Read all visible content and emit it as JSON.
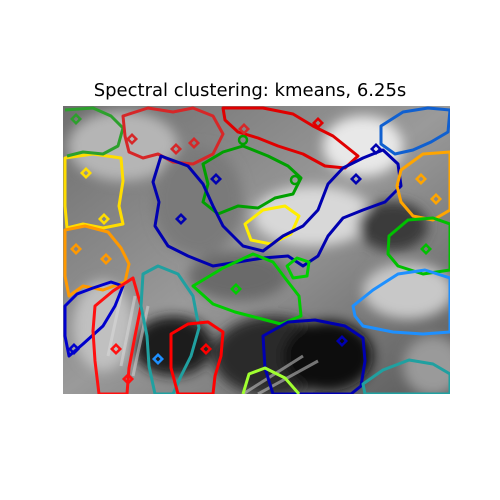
{
  "figure": {
    "title": "Spectral clustering: kmeans, 6.25s"
  },
  "image": {
    "description": "grayscale face image with colored segmentation contours",
    "colormap": "gray"
  },
  "segments": [
    {
      "color": "#2ca02c"
    },
    {
      "color": "#d62728"
    },
    {
      "color": "#0000aa"
    },
    {
      "color": "#ffa500"
    },
    {
      "color": "#ffdd00"
    },
    {
      "color": "#00c000"
    },
    {
      "color": "#20a0a0"
    },
    {
      "color": "#1e90ff"
    },
    {
      "color": "#ff0000"
    },
    {
      "color": "#a0ff30"
    }
  ]
}
